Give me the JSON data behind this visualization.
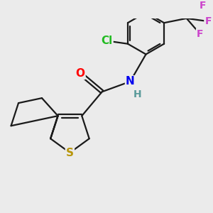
{
  "background_color": "#ebebeb",
  "bond_color": "#1a1a1a",
  "bond_width": 1.6,
  "atom_colors": {
    "S": "#b8960c",
    "O": "#ff0000",
    "N": "#0000ee",
    "H": "#5a9a9a",
    "Cl": "#22bb22",
    "F": "#cc44cc"
  },
  "font_size_atoms": 11,
  "font_size_H": 10
}
